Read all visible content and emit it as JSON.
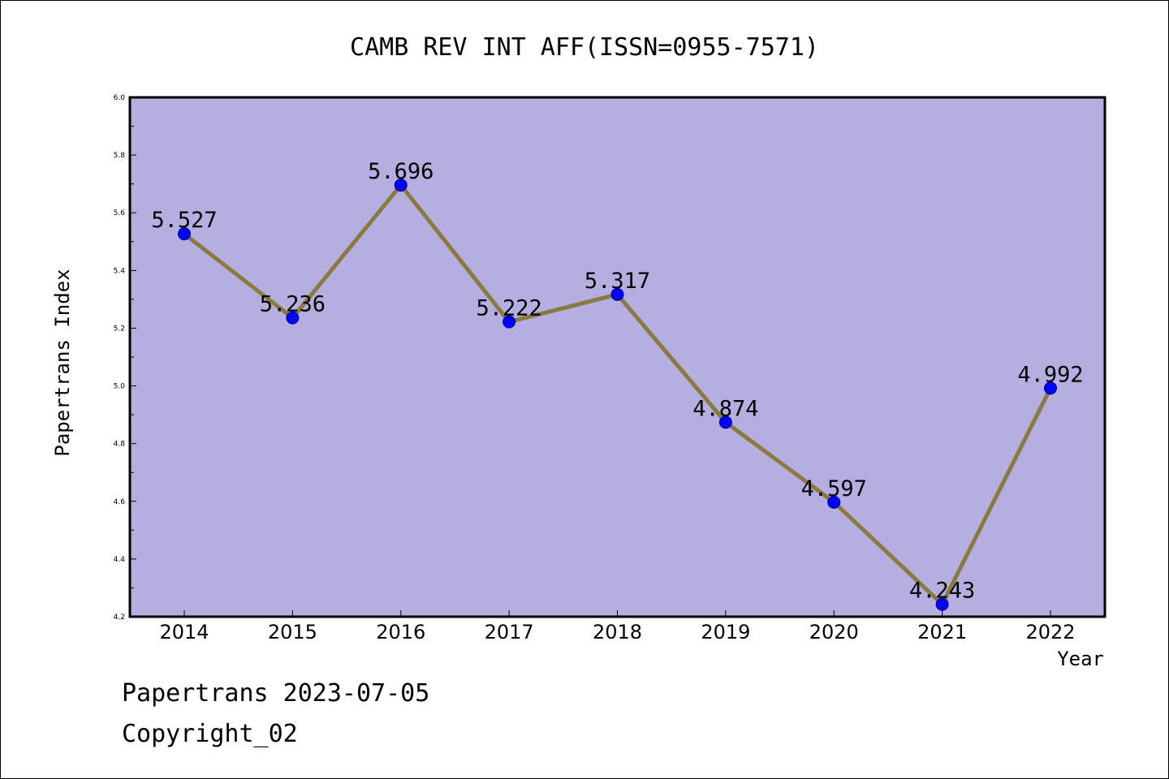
{
  "chart_data": {
    "type": "line",
    "title": "CAMB REV INT AFF(ISSN=0955-7571)",
    "xlabel": "Year",
    "ylabel": "Papertrans Index",
    "categories": [
      "2014",
      "2015",
      "2016",
      "2017",
      "2018",
      "2019",
      "2020",
      "2021",
      "2022"
    ],
    "series": [
      {
        "values": [
          5.527,
          5.236,
          5.696,
          5.222,
          5.317,
          4.874,
          4.597,
          4.243,
          4.992
        ]
      }
    ],
    "data_labels": [
      "5.527",
      "5.236",
      "5.696",
      "5.222",
      "5.317",
      "4.874",
      "4.597",
      "4.243",
      "4.992"
    ],
    "ylim": [
      4.2,
      6.0
    ],
    "y_ticks": [
      4.2,
      4.4,
      4.6,
      4.8,
      5.0,
      5.2,
      5.4,
      5.6,
      5.8,
      6.0
    ],
    "y_tick_labels": [
      "4.2",
      "4.4",
      "4.6",
      "4.8",
      "5.0",
      "5.2",
      "5.4",
      "5.6",
      "5.8",
      "6.0"
    ],
    "grid": false,
    "colors": {
      "plot_background": "#b5aee1",
      "line": "#8b7a3e",
      "marker": "#0000ff",
      "marker_edge": "#00008b",
      "frame": "#000000"
    }
  },
  "footer": {
    "line1": "Papertrans 2023-07-05",
    "line2": "Copyright_02"
  }
}
